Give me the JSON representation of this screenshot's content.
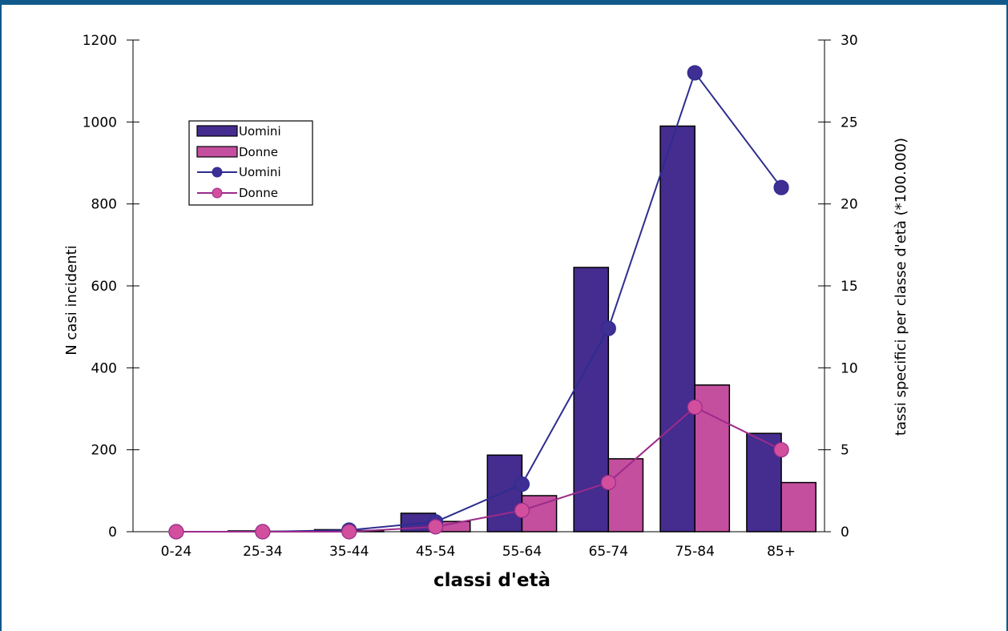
{
  "chart_data": {
    "type": "bar",
    "xlabel": "classi d'età",
    "ylabel_left": "N casi incidenti",
    "ylabel_right": "tassi specifici per classe d'età (*100.000)",
    "categories": [
      "0-24",
      "25-34",
      "35-44",
      "45-54",
      "55-64",
      "65-74",
      "75-84",
      "85+"
    ],
    "ylim_left": [
      0,
      1200
    ],
    "yticks_left": [
      "0",
      "200",
      "400",
      "600",
      "800",
      "1000",
      "1200"
    ],
    "ylim_right": [
      0,
      30
    ],
    "yticks_right": [
      "0",
      "5",
      "10",
      "15",
      "20",
      "25",
      "30"
    ],
    "bar_series": [
      {
        "name": "Uomini",
        "color": "#452c8f",
        "values": [
          0,
          2,
          5,
          45,
          187,
          645,
          990,
          240
        ]
      },
      {
        "name": "Donne",
        "color": "#c44f9f",
        "values": [
          0,
          1,
          3,
          25,
          88,
          178,
          358,
          120
        ]
      }
    ],
    "line_series": [
      {
        "name": "Uomini",
        "color": "#2e2d8f",
        "marker_color": "#3f2e94",
        "values": [
          0,
          0,
          0.1,
          0.6,
          2.9,
          12.4,
          28.0,
          21.0
        ]
      },
      {
        "name": "Donne",
        "color": "#9b2b8a",
        "marker_color": "#d24f9e",
        "values": [
          0,
          0,
          0,
          0.3,
          1.3,
          3.0,
          7.6,
          5.0
        ]
      }
    ],
    "legend_position": "upper-left inside plot",
    "grid": false
  }
}
